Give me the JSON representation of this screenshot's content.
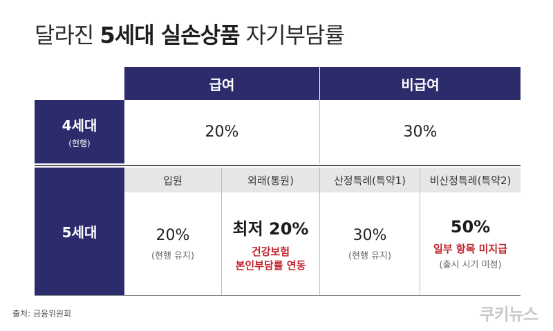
{
  "title": {
    "prefix": "달라진",
    "bold": "5세대 실손상품",
    "suffix": "자기부담률"
  },
  "header": {
    "covered": "급여",
    "noncovered": "비급여"
  },
  "gen4": {
    "label": "4세대",
    "sublabel": "(현행)",
    "covered": "20%",
    "noncovered": "30%"
  },
  "gen5": {
    "label": "5세대",
    "subheaders": [
      "입원",
      "외래(통원)",
      "산정특례(특약1)",
      "비산정특례(특약2)"
    ],
    "inpatient": {
      "value": "20%",
      "note": "(현행 유지)"
    },
    "outpatient": {
      "value": "최저 20%",
      "note_line1": "건강보험",
      "note_line2": "본인부담률 연동"
    },
    "special": {
      "value": "30%",
      "note": "(현행 유지)"
    },
    "nonspecial": {
      "value": "50%",
      "note_red": "일부 항목 미지급",
      "note": "(출시 시기 미정)"
    }
  },
  "source": "출처: 금융위원회",
  "logo": "쿠키뉴스",
  "colors": {
    "navy": "#2c2c6c",
    "red": "#c0232c",
    "gray": "#e6e6e6"
  }
}
